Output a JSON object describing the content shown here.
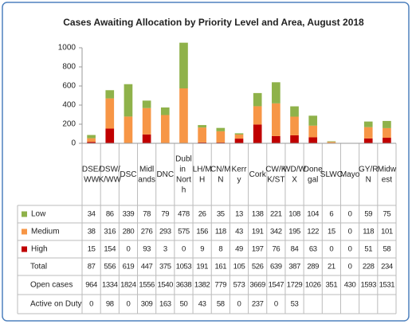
{
  "chart_data": {
    "type": "stacked_bar",
    "title": "Cases Awaiting Allocation by Priority Level and Area, August 2018",
    "categories": [
      "DSE/WW",
      "DSW/K/WW",
      "DSC",
      "Midlands",
      "DNC",
      "Dublin North",
      "LH/MH",
      "CN/MN",
      "Kerry",
      "Cork",
      "CW/KK/ST",
      "WD/WX",
      "Donegal",
      "SLWC",
      "Mayo",
      "GY/RN",
      "Midwest"
    ],
    "series": [
      {
        "name": "Low",
        "color": "#8fb24a",
        "values": [
          34,
          86,
          339,
          78,
          79,
          478,
          26,
          35,
          13,
          138,
          221,
          108,
          104,
          6,
          0,
          59,
          75
        ]
      },
      {
        "name": "Medium",
        "color": "#f79646",
        "values": [
          38,
          316,
          280,
          276,
          293,
          575,
          156,
          118,
          43,
          191,
          342,
          195,
          122,
          15,
          0,
          118,
          101
        ]
      },
      {
        "name": "High",
        "color": "#c00000",
        "values": [
          15,
          154,
          0,
          93,
          3,
          0,
          9,
          8,
          49,
          197,
          76,
          84,
          63,
          0,
          0,
          51,
          58
        ]
      }
    ],
    "extra_rows": [
      {
        "name": "Total",
        "values": [
          87,
          556,
          619,
          447,
          375,
          1053,
          191,
          161,
          105,
          526,
          639,
          387,
          289,
          21,
          0,
          228,
          234
        ]
      },
      {
        "name": "Open cases",
        "values": [
          964,
          1334,
          1824,
          1556,
          1540,
          3638,
          1382,
          779,
          573,
          3669,
          1547,
          1729,
          1026,
          351,
          430,
          1593,
          1531
        ]
      },
      {
        "name": "Active on Duty",
        "values": [
          0,
          98,
          0,
          309,
          163,
          50,
          43,
          58,
          0,
          237,
          0,
          53,
          null,
          null,
          null,
          null,
          null
        ]
      }
    ],
    "ylim": [
      0,
      1000
    ],
    "yticks": [
      0,
      200,
      400,
      600,
      800,
      1000
    ],
    "grid": false
  }
}
